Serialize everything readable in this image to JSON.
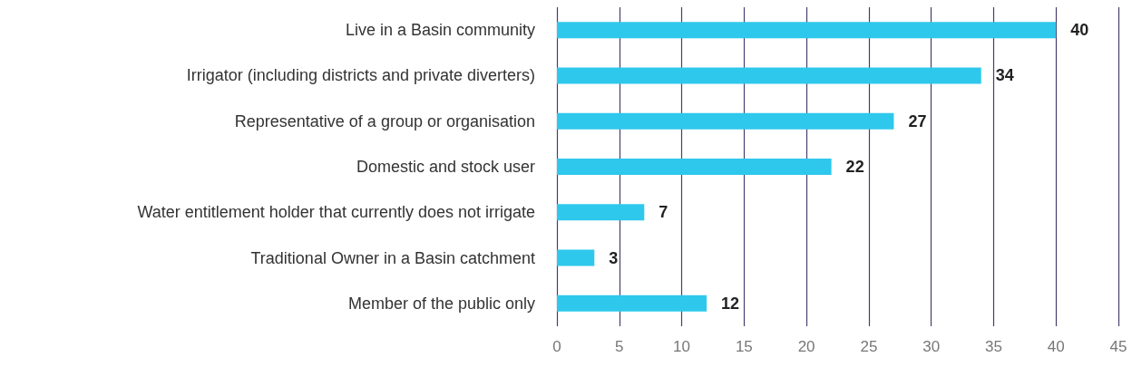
{
  "chart_data": {
    "type": "bar",
    "orientation": "horizontal",
    "categories": [
      "Live in a Basin community",
      "Irrigator (including districts and private diverters)",
      "Representative of a group or organisation",
      "Domestic and stock user",
      "Water entitlement holder that currently does not irrigate",
      "Traditional Owner in a Basin catchment",
      "Member of the public only"
    ],
    "values": [
      40,
      34,
      27,
      22,
      7,
      3,
      12
    ],
    "color": "#2ec8ec",
    "xlim": [
      0,
      45
    ],
    "xticks": [
      0,
      5,
      10,
      15,
      20,
      25,
      30,
      35,
      40,
      45
    ],
    "grid": "x",
    "data_labels": true
  }
}
